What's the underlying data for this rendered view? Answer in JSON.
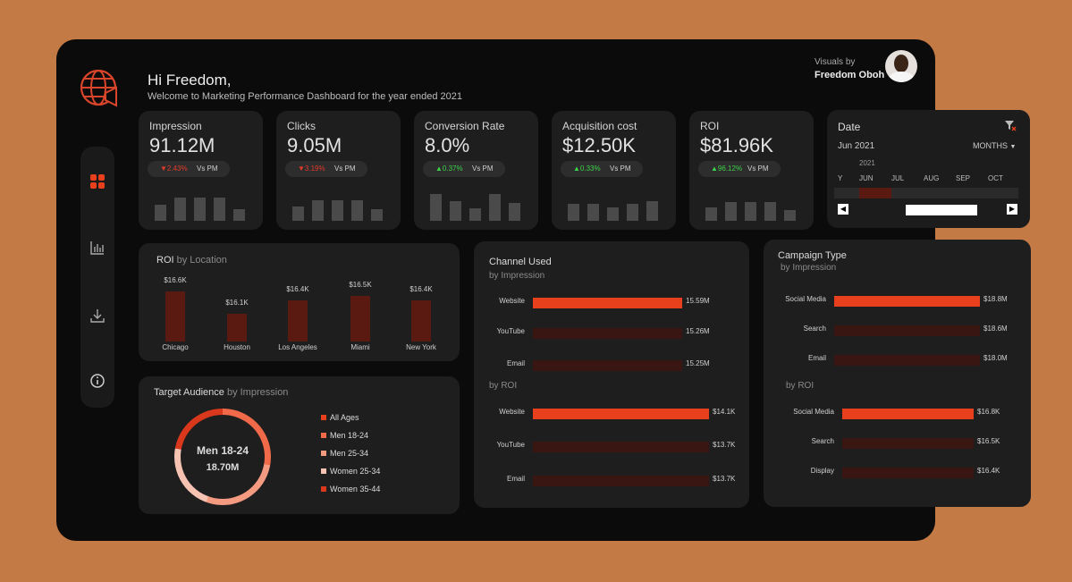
{
  "header": {
    "greeting": "Hi Freedom,",
    "subtitle": "Welcome to Marketing Performance Dashboard for the year ended 2021",
    "visuals_by": "Visuals by",
    "author": "Freedom Oboh"
  },
  "kpis": [
    {
      "title": "Impression",
      "value": "91.12M",
      "change": "▼2.43%",
      "direction": "down",
      "vs": "Vs PM",
      "spark": [
        0.55,
        0.8,
        0.8,
        0.8,
        0.42
      ]
    },
    {
      "title": "Clicks",
      "value": "9.05M",
      "change": "▼3.19%",
      "direction": "down",
      "vs": "Vs PM",
      "spark": [
        0.5,
        0.72,
        0.72,
        0.72,
        0.4
      ]
    },
    {
      "title": "Conversion Rate",
      "value": "8.0%",
      "change": "▲0.37%",
      "direction": "up",
      "vs": "Vs PM",
      "spark": [
        0.95,
        0.7,
        0.45,
        0.95,
        0.62
      ]
    },
    {
      "title": "Acquisition cost",
      "value": "$12.50K",
      "change": "▲0.33%",
      "direction": "up",
      "vs": "Vs PM",
      "spark": [
        0.6,
        0.6,
        0.48,
        0.58,
        0.68
      ]
    },
    {
      "title": "ROI",
      "value": "$81.96K",
      "change": "▲96.12%",
      "direction": "up",
      "vs": "Vs PM",
      "spark": [
        0.48,
        0.65,
        0.65,
        0.65,
        0.36
      ]
    }
  ],
  "date_filter": {
    "title": "Date",
    "selected": "Jun 2021",
    "granularity": "MONTHS",
    "year": "2021",
    "months": [
      "Y",
      "JUN",
      "JUL",
      "AUG",
      "SEP",
      "OCT"
    ]
  },
  "roi_location": {
    "title": "ROI",
    "subtitle": "by Location",
    "items": [
      {
        "label": "Chicago",
        "value": "$16.6K",
        "num": 16.6
      },
      {
        "label": "Houston",
        "value": "$16.1K",
        "num": 16.1
      },
      {
        "label": "Los Angeles",
        "value": "$16.4K",
        "num": 16.4
      },
      {
        "label": "Miami",
        "value": "$16.5K",
        "num": 16.5
      },
      {
        "label": "New York",
        "value": "$16.4K",
        "num": 16.4
      }
    ]
  },
  "target_audience": {
    "title": "Target Audience",
    "subtitle": "by Impression",
    "center_label": "Men 18-24",
    "center_value": "18.70M",
    "legend": [
      {
        "label": "All Ages",
        "color": "#e8401c"
      },
      {
        "label": "Men 18-24",
        "color": "#f06a4a"
      },
      {
        "label": "Men 25-34",
        "color": "#f39a80"
      },
      {
        "label": "Women 25-34",
        "color": "#f6c3b3"
      },
      {
        "label": "Women 35-44",
        "color": "#d9381c"
      }
    ]
  },
  "channel_used": {
    "title": "Channel Used",
    "sub_impression": "by Impression",
    "sub_roi": "by ROI",
    "impression": [
      {
        "label": "Website",
        "value": "15.59M",
        "frac": 1.0
      },
      {
        "label": "YouTube",
        "value": "15.26M",
        "frac": 0.0
      },
      {
        "label": "Email",
        "value": "15.25M",
        "frac": 0.0
      }
    ],
    "roi": [
      {
        "label": "Website",
        "value": "$14.1K",
        "frac": 1.0
      },
      {
        "label": "YouTube",
        "value": "$13.7K",
        "frac": 0.0
      },
      {
        "label": "Email",
        "value": "$13.7K",
        "frac": 0.0
      }
    ]
  },
  "campaign_type": {
    "title": "Campaign Type",
    "sub_impression": "by Impression",
    "sub_roi": "by ROI",
    "impression": [
      {
        "label": "Social Media",
        "value": "$18.8M",
        "frac": 1.0
      },
      {
        "label": "Search",
        "value": "$18.6M",
        "frac": 0.0
      },
      {
        "label": "Email",
        "value": "$18.0M",
        "frac": 0.0
      }
    ],
    "roi": [
      {
        "label": "Social Media",
        "value": "$16.8K",
        "frac": 1.0
      },
      {
        "label": "Search",
        "value": "$16.5K",
        "frac": 0.0
      },
      {
        "label": "Display",
        "value": "$16.4K",
        "frac": 0.0
      }
    ]
  },
  "colors": {
    "accent": "#e8401c",
    "dark_bar": "#3a1612",
    "card": "#1e1e1e"
  }
}
